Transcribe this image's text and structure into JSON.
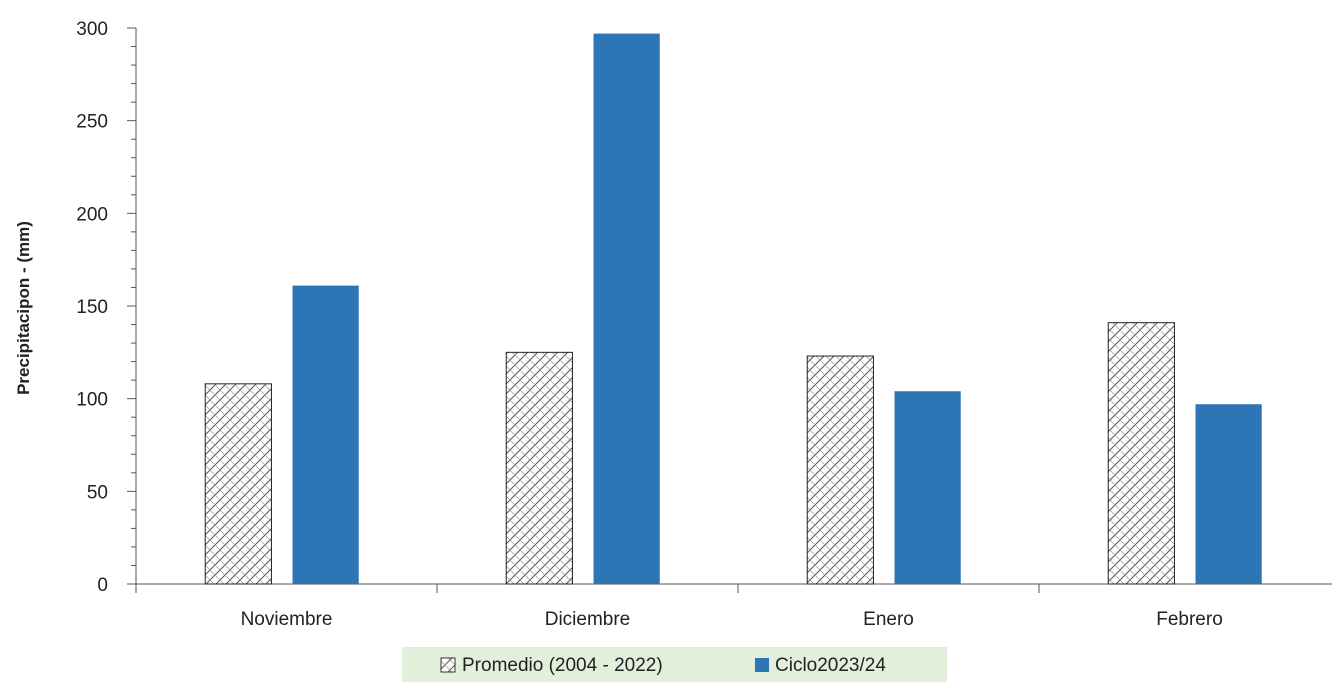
{
  "chart_data": {
    "type": "bar",
    "title": "",
    "xlabel": "",
    "ylabel": "Precipitacipon - (mm)",
    "ylim": [
      0,
      300
    ],
    "yticks": [
      0,
      50,
      100,
      150,
      200,
      250,
      300
    ],
    "categories": [
      "Noviembre",
      "Diciembre",
      "Enero",
      "Febrero"
    ],
    "series": [
      {
        "name": "Promedio (2004 - 2022)",
        "values": [
          108,
          125,
          123,
          141
        ],
        "color": "#ffffff",
        "pattern": "crosshatch"
      },
      {
        "name": "Ciclo2023/24",
        "values": [
          161,
          297,
          104,
          97
        ],
        "color": "#2e75b6"
      }
    ],
    "legend": {
      "placement": "bottom-center",
      "background": "#e2efda"
    },
    "grid": false
  }
}
